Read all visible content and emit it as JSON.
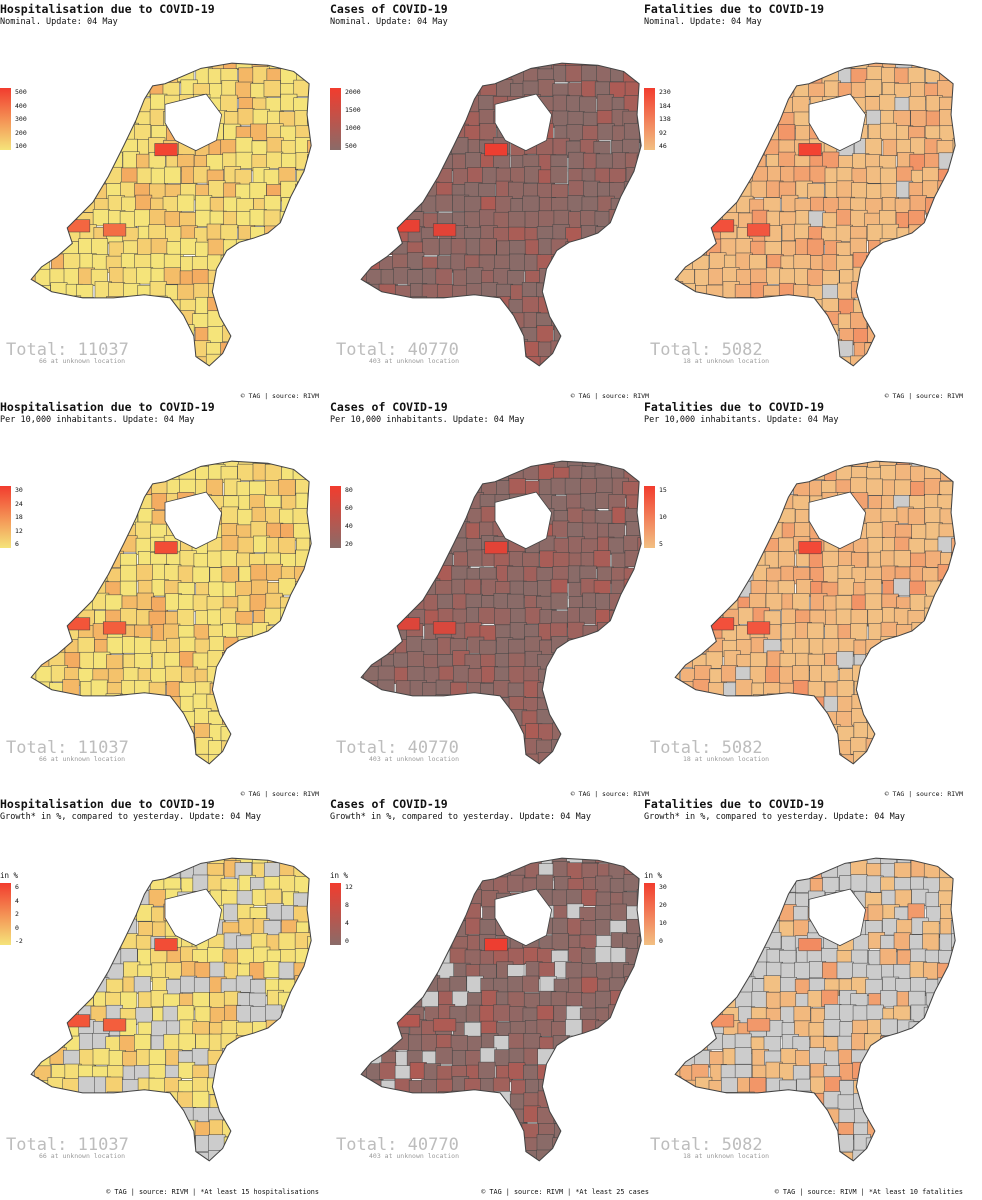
{
  "colors": {
    "yellow_low": "#f5e47a",
    "yellow_high": "#f23c2e",
    "brown_low": "#8a6b68",
    "brown_high": "#f23c2e",
    "peach_low": "#f2c083",
    "peach_high": "#f23c2e",
    "no_data": "#cccccc",
    "border": "#444444"
  },
  "rows": [
    {
      "panels": [
        {
          "title": "Hospitalisation due to COVID-19",
          "subtitle": "Nominal. Update: 04 May",
          "palette": "yellow",
          "legend_unit": "",
          "legend_ticks": [
            "500",
            "400",
            "300",
            "200",
            "100"
          ],
          "legend_max": 550,
          "hotspots": [
            0.95,
            0.75,
            0.7
          ],
          "grey_fraction": 0.0,
          "total": "Total: 11037",
          "unknown": "66 at unknown location",
          "credit": "© TAG | source: RIVM"
        },
        {
          "title": "Cases of COVID-19",
          "subtitle": "Nominal. Update: 04 May",
          "palette": "brown",
          "legend_unit": "",
          "legend_ticks": [
            "2000",
            "1500",
            "1000",
            "500"
          ],
          "legend_max": 2200,
          "hotspots": [
            0.95,
            0.9,
            0.85
          ],
          "grey_fraction": 0.0,
          "total": "Total: 40770",
          "unknown": "403 at unknown location",
          "credit": "© TAG | source: RIVM"
        },
        {
          "title": "Fatalities due to COVID-19",
          "subtitle": "Nominal. Update: 04 May",
          "palette": "peach",
          "legend_unit": "",
          "legend_ticks": [
            "230",
            "184",
            "138",
            "92",
            "46"
          ],
          "legend_max": 235,
          "hotspots": [
            0.95,
            0.85,
            0.8
          ],
          "grey_fraction": 0.08,
          "total": "Total: 5082",
          "unknown": "18 at unknown location",
          "credit": "© TAG | source: RIVM"
        }
      ]
    },
    {
      "panels": [
        {
          "title": "Hospitalisation due to COVID-19",
          "subtitle": "Per 10,000 inhabitants. Update: 04 May",
          "palette": "yellow",
          "legend_unit": "",
          "legend_ticks": [
            "30",
            "24",
            "18",
            "12",
            "6"
          ],
          "legend_max": 32,
          "hotspots": [
            0.9,
            0.85,
            0.8
          ],
          "grey_fraction": 0.0,
          "total": "Total: 11037",
          "unknown": "66 at unknown location",
          "credit": "© TAG | source: RIVM"
        },
        {
          "title": "Cases of COVID-19",
          "subtitle": "Per 10,000 inhabitants. Update: 04 May",
          "palette": "brown",
          "legend_unit": "",
          "legend_ticks": [
            "80",
            "60",
            "40",
            "20"
          ],
          "legend_max": 92,
          "hotspots": [
            0.85,
            0.8,
            0.75
          ],
          "grey_fraction": 0.0,
          "total": "Total: 40770",
          "unknown": "403 at unknown location",
          "credit": "© TAG | source: RIVM"
        },
        {
          "title": "Fatalities due to COVID-19",
          "subtitle": "Per 10,000 inhabitants. Update: 04 May",
          "palette": "peach",
          "legend_unit": "",
          "legend_ticks": [
            "15",
            "10",
            "5"
          ],
          "legend_max": 18,
          "hotspots": [
            0.9,
            0.85,
            0.8
          ],
          "grey_fraction": 0.1,
          "total": "Total: 5082",
          "unknown": "18 at unknown location",
          "credit": "© TAG | source: RIVM"
        }
      ]
    },
    {
      "panels": [
        {
          "title": "Hospitalisation due to COVID-19",
          "subtitle": "Growth* in %, compared to yesterday. Update: 04 May",
          "palette": "yellow",
          "legend_unit": "in %",
          "legend_ticks": [
            "6",
            "4",
            "2",
            "0",
            "-2"
          ],
          "legend_max": 7,
          "hotspots": [
            0.9,
            0.85,
            0.8
          ],
          "grey_fraction": 0.3,
          "total": "Total: 11037",
          "unknown": "66 at unknown location",
          "credit": "© TAG | source: RIVM | *At least 15 hospitalisations"
        },
        {
          "title": "Cases of COVID-19",
          "subtitle": "Growth* in %, compared to yesterday. Update: 04 May",
          "palette": "brown",
          "legend_unit": "in %",
          "legend_ticks": [
            "12",
            "8",
            "4",
            "0"
          ],
          "legend_max": 13,
          "hotspots": [
            0.95,
            0.4,
            0.35
          ],
          "grey_fraction": 0.15,
          "total": "Total: 40770",
          "unknown": "403 at unknown location",
          "credit": "© TAG | source: RIVM | *At least 25 cases"
        },
        {
          "title": "Fatalities due to COVID-19",
          "subtitle": "Growth* in %, compared to yesterday. Update: 04 May",
          "palette": "peach",
          "legend_unit": "in %",
          "legend_ticks": [
            "30",
            "20",
            "10",
            "0"
          ],
          "legend_max": 32,
          "hotspots": [
            0.4,
            0.35,
            0.3
          ],
          "grey_fraction": 0.55,
          "total": "Total: 5082",
          "unknown": "18 at unknown location",
          "credit": "© TAG | source: RIVM | *At least 10 fatalities"
        }
      ]
    }
  ]
}
